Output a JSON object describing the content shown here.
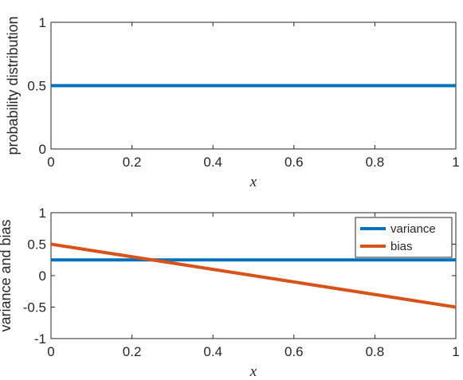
{
  "chart_data": [
    {
      "type": "line",
      "xlabel": "x",
      "ylabel": "probability distribution",
      "xlim": [
        0,
        1
      ],
      "ylim": [
        0,
        1
      ],
      "xticks": [
        "0",
        "0.2",
        "0.4",
        "0.6",
        "0.8",
        "1"
      ],
      "yticks": [
        "0",
        "0.5",
        "1"
      ],
      "grid": false,
      "legend": null,
      "series": [
        {
          "color": "#0072BD",
          "x": [
            0,
            1
          ],
          "y": [
            0.5,
            0.5
          ]
        }
      ]
    },
    {
      "type": "line",
      "xlabel": "x",
      "ylabel": "variance and bias",
      "xlim": [
        0,
        1
      ],
      "ylim": [
        -1,
        1
      ],
      "xticks": [
        "0",
        "0.2",
        "0.4",
        "0.6",
        "0.8",
        "1"
      ],
      "yticks": [
        "-1",
        "-0.5",
        "0",
        "0.5",
        "1"
      ],
      "grid": false,
      "legend": "top-right",
      "series": [
        {
          "name": "variance",
          "color": "#0072BD",
          "x": [
            0,
            1
          ],
          "y": [
            0.25,
            0.25
          ]
        },
        {
          "name": "bias",
          "color": "#D95319",
          "x": [
            0,
            1
          ],
          "y": [
            0.5,
            -0.5
          ]
        }
      ]
    }
  ]
}
